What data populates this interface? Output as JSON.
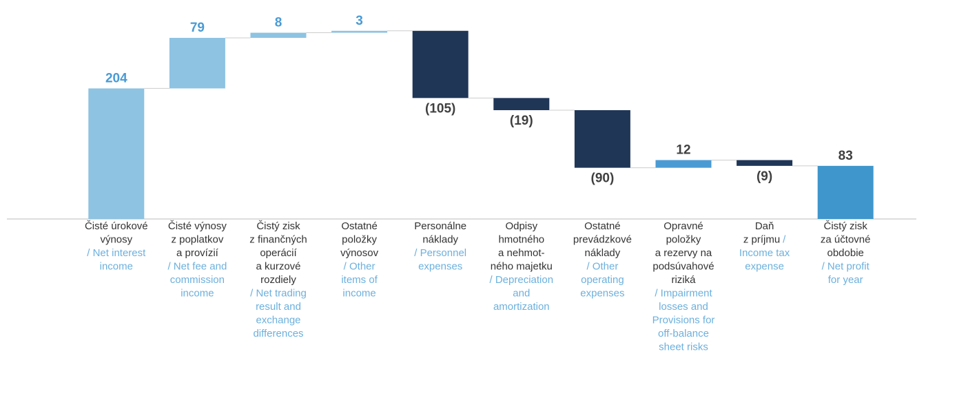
{
  "chart_data": {
    "type": "waterfall",
    "categories": [
      [
        {
          "sk": "Čisté úrokové"
        },
        {
          "sk": "výnosy"
        },
        {
          "en": "/ Net interest"
        },
        {
          "en": "income"
        }
      ],
      [
        {
          "sk": "Čisté výnosy"
        },
        {
          "sk": "z poplatkov"
        },
        {
          "sk": "a provízií"
        },
        {
          "en": "/ Net fee and"
        },
        {
          "en": "commission"
        },
        {
          "en": "income"
        }
      ],
      [
        {
          "sk": "Čistý zisk"
        },
        {
          "sk": "z finančných"
        },
        {
          "sk": "operácií"
        },
        {
          "sk": "a kurzové"
        },
        {
          "sk": "rozdiely"
        },
        {
          "en": "/ Net trading"
        },
        {
          "en": "result and"
        },
        {
          "en": "exchange"
        },
        {
          "en": "differences"
        }
      ],
      [
        {
          "sk": "Ostatné"
        },
        {
          "sk": "položky"
        },
        {
          "sk": "výnosov"
        },
        {
          "en": "/ Other"
        },
        {
          "en": "items of"
        },
        {
          "en": "income"
        }
      ],
      [
        {
          "sk": "Personálne"
        },
        {
          "sk": "náklady"
        },
        {
          "en": "/ Personnel"
        },
        {
          "en": "expenses"
        }
      ],
      [
        {
          "sk": "Odpisy"
        },
        {
          "sk": "hmotného"
        },
        {
          "sk": "a nehmot-"
        },
        {
          "sk": "ného majetku"
        },
        {
          "en": "/ Depreciation"
        },
        {
          "en": "and"
        },
        {
          "en": "amortization"
        }
      ],
      [
        {
          "sk": "Ostatné"
        },
        {
          "sk": "prevádzkové"
        },
        {
          "sk": "náklady"
        },
        {
          "en": "/ Other"
        },
        {
          "en": "operating"
        },
        {
          "en": "expenses"
        }
      ],
      [
        {
          "sk": "Opravné"
        },
        {
          "sk": "položky"
        },
        {
          "sk": "a rezervy na"
        },
        {
          "sk": "podsúvahové"
        },
        {
          "sk": "riziká"
        },
        {
          "en": "/ Impairment"
        },
        {
          "en": "losses and"
        },
        {
          "en": "Provisions for"
        },
        {
          "en": "off-balance"
        },
        {
          "en": "sheet risks"
        }
      ],
      [
        {
          "sk": "Daň"
        },
        {
          "sk": "z príjmu",
          "en": "/"
        },
        {
          "en": "Income tax"
        },
        {
          "en": "expense"
        }
      ],
      [
        {
          "sk": "Čistý zisk"
        },
        {
          "sk": "za účtovné"
        },
        {
          "sk": "obdobie"
        },
        {
          "en": "/ Net profit"
        },
        {
          "en": "for year"
        }
      ]
    ],
    "values": [
      204,
      79,
      8,
      3,
      -105,
      -19,
      -90,
      12,
      -9,
      83
    ],
    "value_labels": [
      "204",
      "79",
      "8",
      "3",
      "(105)",
      "(19)",
      "(90)",
      "12",
      "(9)",
      "83"
    ],
    "measure": [
      "relative",
      "relative",
      "relative",
      "relative",
      "relative",
      "relative",
      "relative",
      "relative",
      "relative",
      "total"
    ],
    "colors": [
      "#8ec3e2",
      "#8ec3e2",
      "#8ec3e2",
      "#8ec3e2",
      "#1f3657",
      "#1f3657",
      "#1f3657",
      "#4a9bd4",
      "#1f3657",
      "#3f96cc"
    ],
    "label_colors": [
      "#4a9bd4",
      "#4a9bd4",
      "#4a9bd4",
      "#4a9bd4",
      "#404040",
      "#404040",
      "#404040",
      "#404040",
      "#404040",
      "#404040"
    ],
    "ylim": [
      0,
      340
    ]
  }
}
